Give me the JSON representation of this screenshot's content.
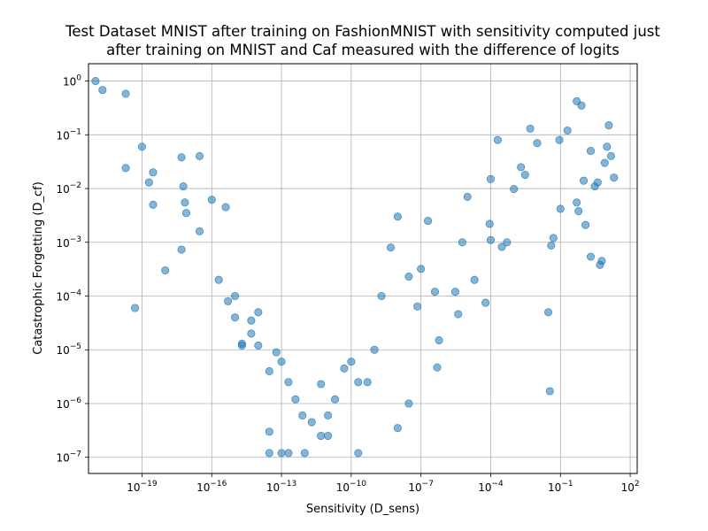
{
  "chart_data": {
    "type": "scatter",
    "title_line1": "Test Dataset MNIST after training on FashionMNIST with sensitivity computed just",
    "title_line2": "after training on MNIST and Caf measured with the difference of logits",
    "xlabel": "Sensitivity (D_sens)",
    "ylabel": "Catastrophic Forgetting (D_cf)",
    "x_scale": "log",
    "y_scale": "log",
    "xlim": [
      5e-22,
      200
    ],
    "ylim": [
      5e-08,
      2.1
    ],
    "grid": true,
    "marker_color": "#1f77b4",
    "marker_alpha": 0.55,
    "x_ticks": [
      {
        "base": "10",
        "exp": "−19",
        "value": 1e-19
      },
      {
        "base": "10",
        "exp": "−16",
        "value": 1e-16
      },
      {
        "base": "10",
        "exp": "−13",
        "value": 1e-13
      },
      {
        "base": "10",
        "exp": "−10",
        "value": 1e-10
      },
      {
        "base": "10",
        "exp": "−7",
        "value": 1e-07
      },
      {
        "base": "10",
        "exp": "−4",
        "value": 0.0001
      },
      {
        "base": "10",
        "exp": "−1",
        "value": 0.1
      },
      {
        "base": "10",
        "exp": "2",
        "value": 100
      }
    ],
    "y_ticks": [
      {
        "base": "10",
        "exp": "−7",
        "value": 1e-07
      },
      {
        "base": "10",
        "exp": "−6",
        "value": 1e-06
      },
      {
        "base": "10",
        "exp": "−5",
        "value": 1e-05
      },
      {
        "base": "10",
        "exp": "−4",
        "value": 0.0001
      },
      {
        "base": "10",
        "exp": "−3",
        "value": 0.001
      },
      {
        "base": "10",
        "exp": "−2",
        "value": 0.01
      },
      {
        "base": "10",
        "exp": "−1",
        "value": 0.1
      },
      {
        "base": "10",
        "exp": "0",
        "value": 1
      }
    ],
    "series": [
      {
        "points": [
          [
            1e-21,
            1.0
          ],
          [
            2e-21,
            0.68
          ],
          [
            2e-20,
            0.024
          ],
          [
            3e-19,
            0.005
          ],
          [
            2e-20,
            0.58
          ],
          [
            1e-19,
            0.06
          ],
          [
            3e-19,
            0.02
          ],
          [
            2e-19,
            0.013
          ],
          [
            1e-18,
            0.0003
          ],
          [
            5e-18,
            0.00073
          ],
          [
            8e-18,
            0.0035
          ],
          [
            7e-18,
            0.0055
          ],
          [
            5e-20,
            6e-05
          ],
          [
            3e-17,
            0.0016
          ],
          [
            2e-16,
            0.0002
          ],
          [
            1e-16,
            0.0062
          ],
          [
            4e-16,
            0.0045
          ],
          [
            3e-17,
            0.04
          ],
          [
            5e-18,
            0.038
          ],
          [
            6e-18,
            0.011
          ],
          [
            1e-15,
            0.0001
          ],
          [
            2e-15,
            1.2e-05
          ],
          [
            3e-14,
            3e-07
          ],
          [
            1e-14,
            5e-05
          ],
          [
            5e-15,
            2e-05
          ],
          [
            2e-13,
            1.2e-07
          ],
          [
            1e-13,
            1.2e-07
          ],
          [
            1e-12,
            1.2e-07
          ],
          [
            3e-14,
            1.2e-07
          ],
          [
            5e-12,
            2.5e-07
          ],
          [
            1e-11,
            2.5e-07
          ],
          [
            2e-10,
            1.2e-07
          ],
          [
            1e-08,
            3.5e-07
          ],
          [
            3e-08,
            1e-06
          ],
          [
            5e-07,
            4.7e-06
          ],
          [
            6e-07,
            1.5e-05
          ],
          [
            4e-06,
            4.6e-05
          ],
          [
            3e-06,
            0.00012
          ],
          [
            6e-05,
            7.5e-05
          ],
          [
            9e-05,
            0.0022
          ],
          [
            0.0005,
            0.001
          ],
          [
            0.002,
            0.025
          ],
          [
            0.003,
            0.018
          ],
          [
            0.001,
            0.0098
          ],
          [
            0.03,
            5e-05
          ],
          [
            0.035,
            1.7e-06
          ],
          [
            0.04,
            0.00087
          ],
          [
            0.1,
            0.0042
          ],
          [
            0.5,
            0.0055
          ],
          [
            0.6,
            0.0038
          ],
          [
            1.2,
            0.0021
          ],
          [
            2,
            0.00054
          ],
          [
            5,
            0.00038
          ],
          [
            6,
            0.00045
          ],
          [
            3,
            0.011
          ],
          [
            4,
            0.013
          ],
          [
            8,
            0.03
          ],
          [
            20,
            0.016
          ],
          [
            15,
            0.04
          ],
          [
            10,
            0.06
          ],
          [
            12,
            0.15
          ],
          [
            2,
            0.05
          ],
          [
            1,
            0.014
          ],
          [
            0.8,
            0.35
          ],
          [
            0.5,
            0.42
          ],
          [
            0.2,
            0.12
          ],
          [
            0.09,
            0.08
          ],
          [
            0.05,
            0.0012
          ],
          [
            0.01,
            0.07
          ],
          [
            0.005,
            0.13
          ],
          [
            0.0002,
            0.08
          ],
          [
            0.0001,
            0.015
          ],
          [
            0.0003,
            0.00082
          ],
          [
            0.0001,
            0.0011
          ],
          [
            2e-05,
            0.0002
          ],
          [
            6e-06,
            0.001
          ],
          [
            1e-05,
            0.007
          ],
          [
            4e-07,
            0.00012
          ],
          [
            2e-07,
            0.0025
          ],
          [
            1e-07,
            0.00032
          ],
          [
            7e-08,
            6.4e-05
          ],
          [
            3e-08,
            0.00023
          ],
          [
            1e-08,
            0.003
          ],
          [
            5e-09,
            0.0008
          ],
          [
            2e-09,
            0.0001
          ],
          [
            1e-09,
            1e-05
          ],
          [
            5e-10,
            2.5e-06
          ],
          [
            2e-10,
            2.5e-06
          ],
          [
            1e-10,
            6e-06
          ],
          [
            5e-11,
            4.5e-06
          ],
          [
            2e-11,
            1.2e-06
          ],
          [
            1e-11,
            6e-07
          ],
          [
            5e-12,
            2.3e-06
          ],
          [
            2e-12,
            4.5e-07
          ],
          [
            8e-13,
            6e-07
          ],
          [
            4e-13,
            1.2e-06
          ],
          [
            2e-13,
            2.5e-06
          ],
          [
            1e-13,
            6e-06
          ],
          [
            6e-14,
            9e-06
          ],
          [
            3e-14,
            4e-06
          ],
          [
            1e-14,
            1.2e-05
          ],
          [
            5e-15,
            3.5e-05
          ],
          [
            2e-15,
            1.3e-05
          ],
          [
            1e-15,
            4e-05
          ],
          [
            5e-16,
            8e-05
          ]
        ]
      }
    ]
  }
}
